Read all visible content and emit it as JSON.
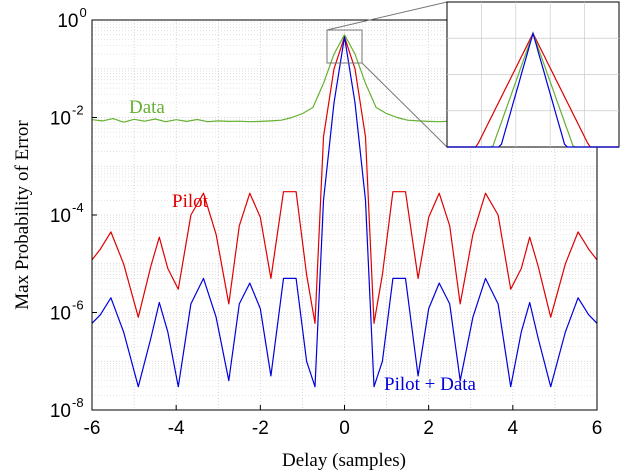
{
  "colors": {
    "pilot": "#e00000",
    "data": "#66b032",
    "combined": "#0000dd",
    "grid_major": "#cccccc",
    "grid_minor": "#dddddd"
  },
  "chart_data": {
    "type": "line",
    "title": "",
    "xlabel": "Delay (samples)",
    "ylabel": "Max Probability of Error",
    "xlim": [
      -6,
      6
    ],
    "ylim_exponent": [
      -8,
      0
    ],
    "yscale": "log",
    "grid": true,
    "x_ticks": [
      "-6",
      "-4",
      "-2",
      "0",
      "2",
      "4",
      "6"
    ],
    "y_ticks": [
      {
        "base": "10",
        "exp": "0"
      },
      {
        "base": "10",
        "exp": "-2"
      },
      {
        "base": "10",
        "exp": "-4"
      },
      {
        "base": "10",
        "exp": "-6"
      },
      {
        "base": "10",
        "exp": "-8"
      }
    ],
    "series": [
      {
        "key": "data",
        "name": "Data",
        "x": [
          -6,
          -5.75,
          -5.5,
          -5.25,
          -5,
          -4.75,
          -4.5,
          -4.25,
          -4,
          -3.75,
          -3.5,
          -3.25,
          -3,
          -2.75,
          -2.5,
          -2.25,
          -2,
          -1.75,
          -1.5,
          -1.25,
          -1,
          -0.75,
          -0.5,
          -0.25,
          0,
          0.25,
          0.5,
          0.75,
          1,
          1.25,
          1.5,
          1.75,
          2,
          2.25,
          2.5,
          2.75,
          3,
          3.25,
          3.5,
          3.75,
          4,
          4.25,
          4.5,
          4.75,
          5,
          5.25,
          5.5,
          5.75,
          6
        ],
        "y": [
          0.009,
          0.0085,
          0.0095,
          0.008,
          0.0092,
          0.0084,
          0.0093,
          0.0082,
          0.009,
          0.0083,
          0.0091,
          0.0082,
          0.0085,
          0.0083,
          0.0084,
          0.0082,
          0.0083,
          0.0085,
          0.0088,
          0.01,
          0.012,
          0.016,
          0.05,
          0.2,
          0.5,
          0.2,
          0.05,
          0.016,
          0.012,
          0.01,
          0.0088,
          0.0085,
          0.0083,
          0.0082,
          0.0084,
          0.0083,
          0.0085,
          0.0082,
          0.0091,
          0.0083,
          0.009,
          0.0082,
          0.0093,
          0.0084,
          0.0092,
          0.008,
          0.0095,
          0.0085,
          0.009
        ]
      },
      {
        "key": "pilot",
        "name": "Pilot",
        "x": [
          -6,
          -5.8,
          -5.55,
          -5.25,
          -4.9,
          -4.6,
          -4.4,
          -4.2,
          -3.95,
          -3.65,
          -3.35,
          -3.05,
          -2.75,
          -2.5,
          -2.25,
          -2.0,
          -1.75,
          -1.45,
          -1.15,
          -0.9,
          -0.7,
          -0.5,
          -0.25,
          0,
          0.25,
          0.5,
          0.7,
          0.9,
          1.15,
          1.45,
          1.75,
          2.0,
          2.25,
          2.5,
          2.75,
          3.05,
          3.35,
          3.65,
          3.95,
          4.2,
          4.4,
          4.6,
          4.9,
          5.25,
          5.55,
          5.8,
          6
        ],
        "y": [
          1.2e-05,
          2e-05,
          4.5e-05,
          1e-05,
          8e-07,
          9e-06,
          3.5e-05,
          8e-06,
          3e-06,
          0.0001,
          0.00028,
          4e-05,
          1.5e-06,
          6e-05,
          0.00028,
          9e-05,
          5e-06,
          0.0003,
          0.0003,
          6e-06,
          6e-07,
          0.004,
          0.1,
          0.45,
          0.1,
          0.004,
          6e-07,
          6e-06,
          0.0003,
          0.0003,
          5e-06,
          9e-05,
          0.00028,
          6e-05,
          1.5e-06,
          4e-05,
          0.00028,
          0.0001,
          3e-06,
          8e-06,
          3.5e-05,
          9e-06,
          8e-07,
          1e-05,
          4.5e-05,
          2e-05,
          1.2e-05
        ]
      },
      {
        "key": "combined",
        "name": "Pilot + Data",
        "x": [
          -6,
          -5.8,
          -5.55,
          -5.25,
          -4.9,
          -4.6,
          -4.4,
          -4.2,
          -3.95,
          -3.65,
          -3.35,
          -3.05,
          -2.75,
          -2.5,
          -2.25,
          -2.0,
          -1.75,
          -1.45,
          -1.15,
          -0.9,
          -0.7,
          -0.5,
          -0.25,
          0,
          0.25,
          0.5,
          0.7,
          0.9,
          1.15,
          1.45,
          1.75,
          2.0,
          2.25,
          2.5,
          2.75,
          3.05,
          3.35,
          3.65,
          3.95,
          4.2,
          4.4,
          4.6,
          4.9,
          5.25,
          5.55,
          5.8,
          6
        ],
        "y": [
          6e-07,
          9e-07,
          2e-06,
          4e-07,
          3e-08,
          3e-07,
          1.6e-06,
          4e-07,
          3e-08,
          1.5e-06,
          5e-06,
          8e-07,
          4e-08,
          1.5e-06,
          4e-06,
          1.2e-06,
          5e-08,
          5e-06,
          5e-06,
          1e-07,
          3e-08,
          0.0002,
          0.02,
          0.45,
          0.02,
          0.0002,
          3e-08,
          1e-07,
          5e-06,
          5e-06,
          5e-08,
          1.2e-06,
          4e-06,
          1.5e-06,
          4e-08,
          8e-07,
          5e-06,
          1.5e-06,
          3e-08,
          4e-07,
          1.6e-06,
          3e-07,
          3e-08,
          4e-07,
          2e-06,
          9e-07,
          6e-07
        ]
      }
    ],
    "annotations": {
      "data_label": "Data",
      "pilot_label": "Pilot",
      "combined_label": "Pilot + Data"
    },
    "inset": {
      "description_free": true,
      "xlim": [
        -0.2,
        0.2
      ],
      "ylim_exponent": [
        -1.6,
        0
      ],
      "series_keys": [
        "pilot",
        "data",
        "combined"
      ]
    }
  }
}
